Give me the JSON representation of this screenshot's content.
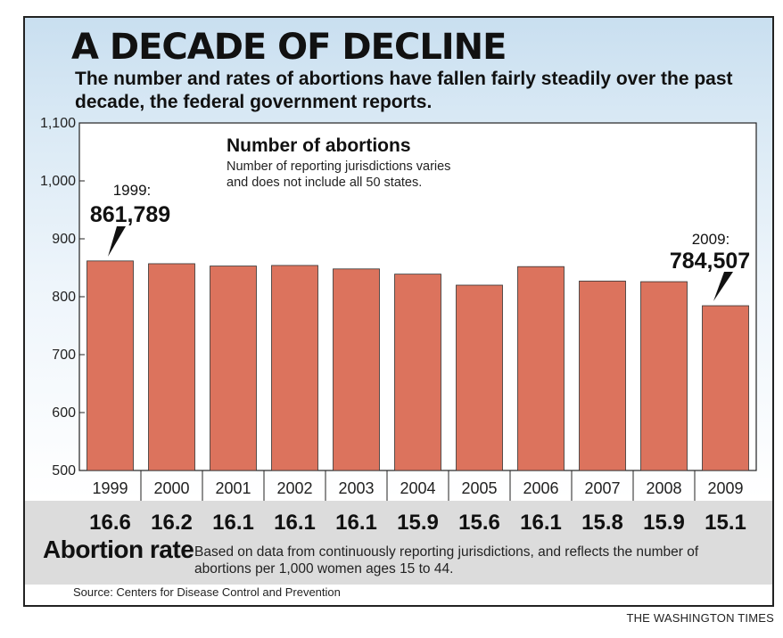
{
  "header": {
    "title": "A DECADE OF DECLINE",
    "subtitle": "The number and rates of abortions have fallen fairly steadily over the past decade, the federal government reports."
  },
  "chart_data": {
    "type": "bar",
    "title": "Number of abortions",
    "subtitle": "Number of reporting jurisdictions varies and does not include all 50 states.",
    "xlabel": "",
    "ylabel": "",
    "ylim": [
      500,
      1100
    ],
    "y_ticks": [
      "500",
      "600",
      "700",
      "800",
      "900",
      "1,000",
      "1,100"
    ],
    "categories": [
      "1999",
      "2000",
      "2001",
      "2002",
      "2003",
      "2004",
      "2005",
      "2006",
      "2007",
      "2008",
      "2009"
    ],
    "values": [
      861.789,
      857,
      853,
      854,
      848,
      839,
      820,
      852,
      827,
      826,
      784.507
    ],
    "bar_color": "#dc735d",
    "annotations": [
      {
        "year_label": "1999:",
        "value_label": "861,789"
      },
      {
        "year_label": "2009:",
        "value_label": "784,507"
      }
    ],
    "abortion_rate": {
      "label": "Abortion rate",
      "note": "Based on data from continuously reporting jurisdictions, and reflects the number of abortions per 1,000 women ages 15 to 44.",
      "values": [
        "16.6",
        "16.2",
        "16.1",
        "16.1",
        "16.1",
        "15.9",
        "15.6",
        "16.1",
        "15.8",
        "15.9",
        "15.1"
      ]
    }
  },
  "footer": {
    "source": "Source: Centers for Disease Control and Prevention",
    "credit": "THE WASHINGTON TIMES"
  }
}
